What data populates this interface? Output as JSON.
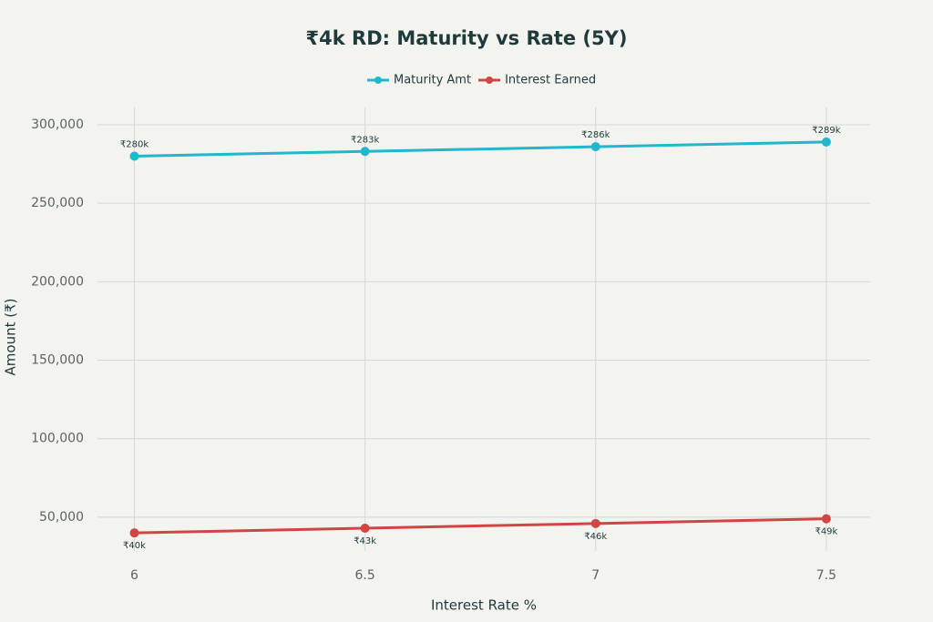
{
  "chart_data": {
    "type": "line",
    "title": "₹4k RD: Maturity vs Rate (5Y)",
    "x_label": "Interest Rate %",
    "y_label": "Amount (₹)",
    "x": [
      6,
      6.5,
      7,
      7.5
    ],
    "series": [
      {
        "name": "Maturity Amt",
        "color": "#1fb8cd",
        "values": [
          280000,
          283000,
          286000,
          289000
        ],
        "value_labels": [
          "₹280k",
          "₹283k",
          "₹286k",
          "₹289k"
        ]
      },
      {
        "name": "Interest Earned",
        "color": "#d24545",
        "values": [
          40000,
          43000,
          46000,
          49000
        ],
        "value_labels": [
          "₹40k",
          "₹43k",
          "₹46k",
          "₹49k"
        ]
      }
    ],
    "xlim": [
      5.92,
      7.595
    ],
    "ylim": [
      28500,
      311000
    ],
    "xticks": [
      6,
      6.5,
      7,
      7.5
    ],
    "yticks": [
      {
        "value": 50000,
        "label": "50,000"
      },
      {
        "value": 100000,
        "label": "100,000"
      },
      {
        "value": 150000,
        "label": "150,000"
      },
      {
        "value": 200000,
        "label": "200,000"
      },
      {
        "value": 250000,
        "label": "250,000"
      },
      {
        "value": 300000,
        "label": "300,000"
      }
    ],
    "grid": true,
    "legend": "top"
  }
}
